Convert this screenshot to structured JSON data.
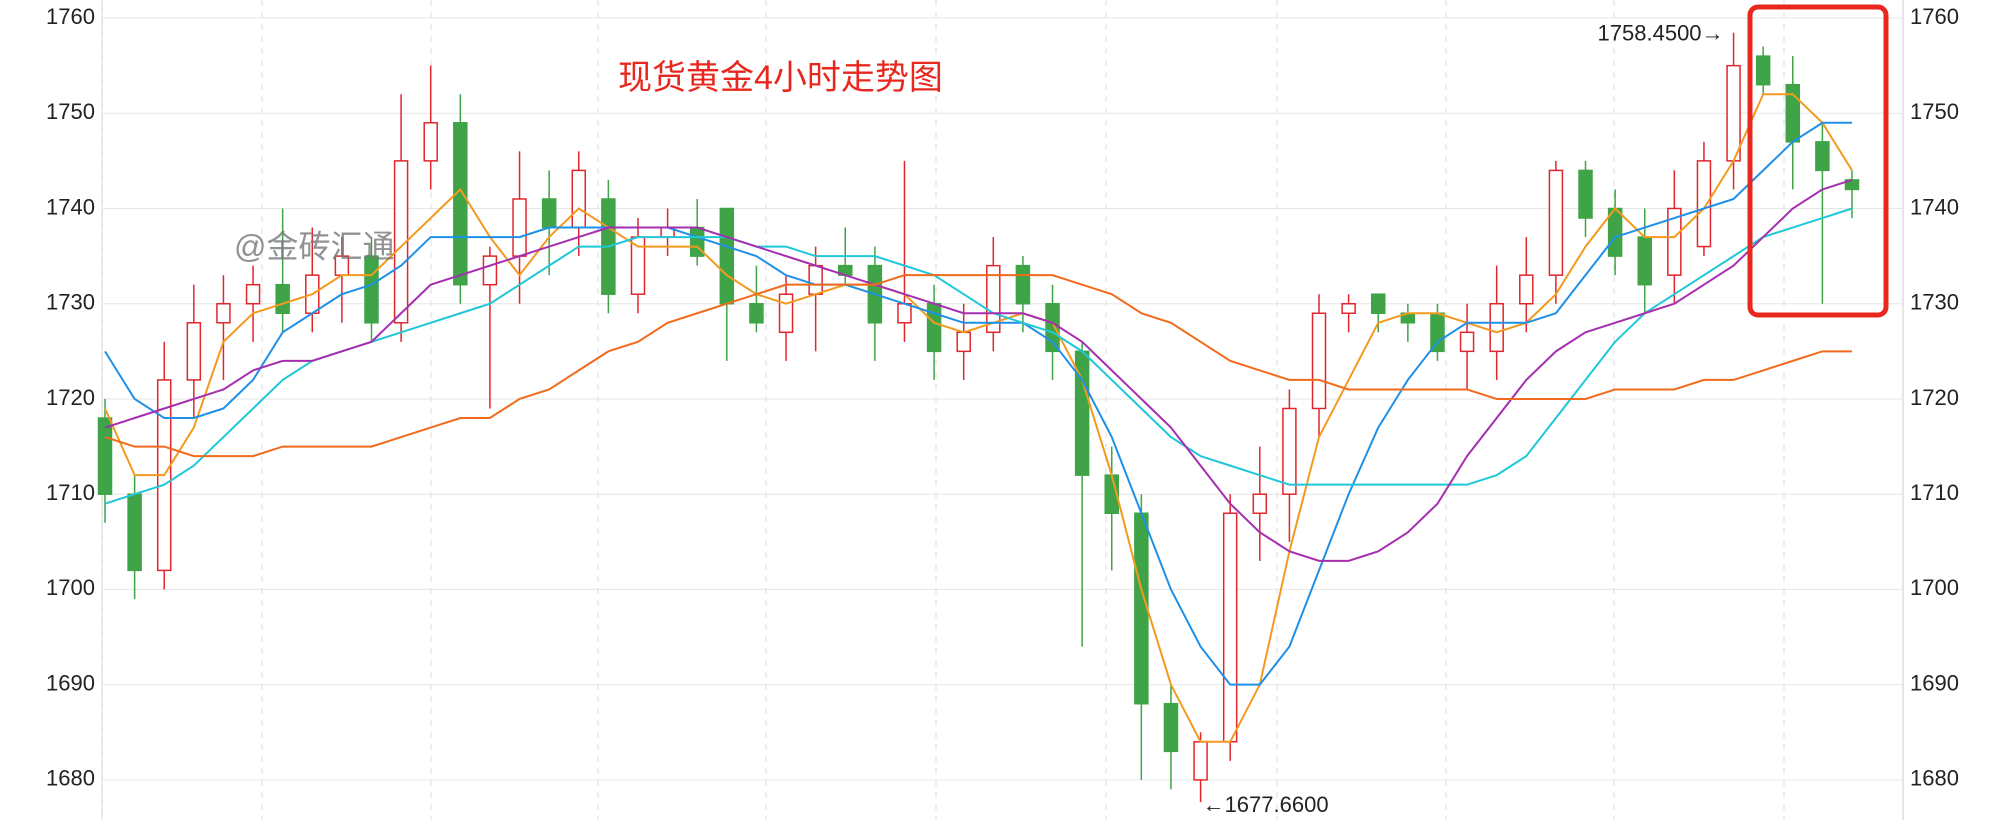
{
  "chart_data": {
    "type": "candlestick",
    "title": "现货黄金4小时走势图",
    "watermark": "@金砖汇通",
    "up_color": "#e0262c",
    "down_color": "#3fa447",
    "open": [
      1718,
      1710,
      1702,
      1722,
      1728,
      1730,
      1732,
      1729,
      1733,
      1735,
      1728,
      1745,
      1749,
      1732,
      1735,
      1741,
      1738,
      1741,
      1731,
      1737,
      1738,
      1740,
      1730,
      1727,
      1731,
      1734,
      1734,
      1728,
      1730,
      1725,
      1727,
      1734,
      1730,
      1725,
      1712,
      1708,
      1688,
      1680,
      1684,
      1708,
      1710,
      1719,
      1729,
      1731,
      1729,
      1729,
      1725,
      1725,
      1730,
      1733,
      1744,
      1740,
      1737,
      1733,
      1736,
      1745,
      1756,
      1753,
      1747,
      1743
    ],
    "high": [
      1720,
      1712,
      1726,
      1732,
      1733,
      1734,
      1740,
      1738,
      1737,
      1737,
      1752,
      1755,
      1752,
      1736,
      1746,
      1744,
      1746,
      1743,
      1739,
      1740,
      1741,
      1740,
      1734,
      1733,
      1736,
      1738,
      1736,
      1745,
      1732,
      1730,
      1737,
      1735,
      1732,
      1726,
      1715,
      1710,
      1690,
      1685,
      1710,
      1715,
      1721,
      1731,
      1731,
      1731,
      1730,
      1730,
      1730,
      1734,
      1737,
      1745,
      1745,
      1742,
      1740,
      1744,
      1747,
      1758.45,
      1757,
      1756,
      1749,
      1744
    ],
    "low": [
      1707,
      1699,
      1700,
      1718,
      1722,
      1726,
      1727,
      1727,
      1728,
      1726,
      1726,
      1742,
      1730,
      1719,
      1730,
      1733,
      1735,
      1729,
      1729,
      1735,
      1734,
      1724,
      1727,
      1724,
      1725,
      1732,
      1724,
      1726,
      1722,
      1722,
      1725,
      1727,
      1722,
      1694,
      1702,
      1680,
      1679,
      1677.66,
      1682,
      1703,
      1705,
      1716,
      1727,
      1727,
      1726,
      1724,
      1721,
      1722,
      1727,
      1730,
      1737,
      1733,
      1729,
      1730,
      1735,
      1742,
      1752,
      1742,
      1730,
      1739
    ],
    "close": [
      1710,
      1702,
      1722,
      1728,
      1730,
      1732,
      1729,
      1733,
      1735,
      1728,
      1745,
      1749,
      1732,
      1735,
      1741,
      1738,
      1744,
      1731,
      1737,
      1738,
      1735,
      1730,
      1728,
      1731,
      1734,
      1733,
      1728,
      1730,
      1725,
      1727,
      1734,
      1730,
      1725,
      1712,
      1708,
      1688,
      1683,
      1684,
      1708,
      1710,
      1719,
      1729,
      1730,
      1729,
      1728,
      1725,
      1727,
      1730,
      1733,
      1744,
      1739,
      1735,
      1732,
      1740,
      1745,
      1755,
      1753,
      1747,
      1744,
      1742
    ],
    "series": [
      {
        "color": "#f39a1e",
        "values": [
          1719,
          1712,
          1712,
          1717,
          1726,
          1729,
          1730,
          1731,
          1733,
          1733,
          1736,
          1739,
          1742,
          1737,
          1733,
          1737,
          1740,
          1738,
          1736,
          1736,
          1736,
          1733,
          1731,
          1730,
          1731,
          1732,
          1732,
          1731,
          1728,
          1727,
          1728,
          1729,
          1728,
          1722,
          1712,
          1700,
          1690,
          1684,
          1684,
          1690,
          1704,
          1716,
          1722,
          1728,
          1729,
          1729,
          1728,
          1727,
          1728,
          1731,
          1736,
          1740,
          1737,
          1737,
          1740,
          1745,
          1752,
          1752,
          1749,
          1744
        ]
      },
      {
        "color": "#1e90e8",
        "values": [
          1725,
          1720,
          1718,
          1718,
          1719,
          1722,
          1727,
          1729,
          1731,
          1732,
          1734,
          1737,
          1737,
          1737,
          1737,
          1738,
          1738,
          1738,
          1738,
          1738,
          1737,
          1736,
          1735,
          1733,
          1732,
          1732,
          1731,
          1730,
          1729,
          1728,
          1728,
          1728,
          1726,
          1722,
          1716,
          1708,
          1700,
          1694,
          1690,
          1690,
          1694,
          1702,
          1710,
          1717,
          1722,
          1726,
          1728,
          1728,
          1728,
          1729,
          1733,
          1737,
          1738,
          1739,
          1740,
          1741,
          1744,
          1747,
          1749,
          1749
        ]
      },
      {
        "color": "#1fc8d8",
        "values": [
          1709,
          1710,
          1711,
          1713,
          1716,
          1719,
          1722,
          1724,
          1725,
          1726,
          1727,
          1728,
          1729,
          1730,
          1732,
          1734,
          1736,
          1736,
          1737,
          1737,
          1737,
          1737,
          1736,
          1736,
          1735,
          1735,
          1735,
          1734,
          1733,
          1731,
          1729,
          1728,
          1727,
          1725,
          1722,
          1719,
          1716,
          1714,
          1713,
          1712,
          1711,
          1711,
          1711,
          1711,
          1711,
          1711,
          1711,
          1712,
          1714,
          1718,
          1722,
          1726,
          1729,
          1731,
          1733,
          1735,
          1737,
          1738,
          1739,
          1740
        ]
      },
      {
        "color": "#a62fb0",
        "values": [
          1717,
          1718,
          1719,
          1720,
          1721,
          1723,
          1724,
          1724,
          1725,
          1726,
          1729,
          1732,
          1733,
          1734,
          1735,
          1736,
          1737,
          1738,
          1738,
          1738,
          1738,
          1737,
          1736,
          1735,
          1734,
          1733,
          1732,
          1731,
          1730,
          1729,
          1729,
          1729,
          1728,
          1726,
          1723,
          1720,
          1717,
          1713,
          1709,
          1706,
          1704,
          1703,
          1703,
          1704,
          1706,
          1709,
          1714,
          1718,
          1722,
          1725,
          1727,
          1728,
          1729,
          1730,
          1732,
          1734,
          1737,
          1740,
          1742,
          1743
        ]
      },
      {
        "color": "#f26a1b",
        "values": [
          1716,
          1715,
          1715,
          1714,
          1714,
          1714,
          1715,
          1715,
          1715,
          1715,
          1716,
          1717,
          1718,
          1718,
          1720,
          1721,
          1723,
          1725,
          1726,
          1728,
          1729,
          1730,
          1731,
          1732,
          1732,
          1732,
          1732,
          1733,
          1733,
          1733,
          1733,
          1733,
          1733,
          1732,
          1731,
          1729,
          1728,
          1726,
          1724,
          1723,
          1722,
          1722,
          1721,
          1721,
          1721,
          1721,
          1721,
          1720,
          1720,
          1720,
          1720,
          1721,
          1721,
          1721,
          1722,
          1722,
          1723,
          1724,
          1725,
          1725
        ]
      }
    ],
    "annotations": [
      {
        "text": "1758.4500→",
        "value": 1758.45
      },
      {
        "text": "←1677.6600",
        "value": 1677.66
      }
    ],
    "ylim": [
      1676,
      1761
    ],
    "yticks": [
      1680,
      1690,
      1700,
      1710,
      1720,
      1730,
      1740,
      1750,
      1760
    ],
    "grid": true
  }
}
